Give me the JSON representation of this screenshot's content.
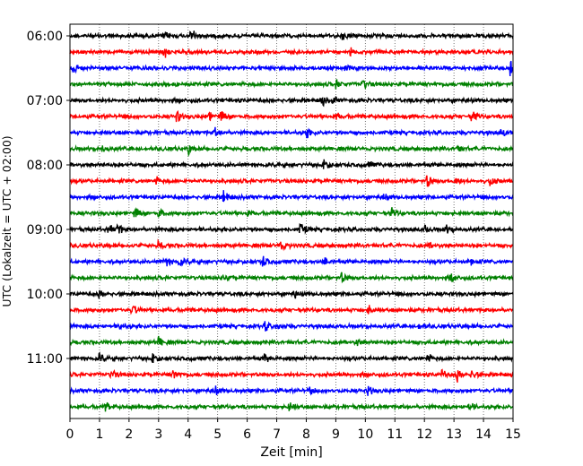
{
  "chart_data": {
    "type": "line",
    "title": "",
    "xlabel": "Zeit  [min]",
    "ylabel": "UTC (Lokalzeit = UTC + 02:00)",
    "xlim": [
      0,
      15
    ],
    "x_ticks": [
      "0",
      "1",
      "2",
      "3",
      "4",
      "5",
      "6",
      "7",
      "8",
      "9",
      "10",
      "11",
      "12",
      "13",
      "14",
      "15"
    ],
    "y_ticks": [
      "06:00",
      "07:00",
      "08:00",
      "09:00",
      "10:00",
      "11:00"
    ],
    "grid": "vertical dotted",
    "trace_colors": [
      "#000000",
      "#ff0000",
      "#0000ff",
      "#008000"
    ],
    "trace_interval_min": 15,
    "traces": [
      {
        "start": "06:00",
        "color": "#000000",
        "events": [
          {
            "t": 4.1,
            "a": 1.0
          },
          {
            "t": 9.2,
            "a": 0.5
          },
          {
            "t": 3.2,
            "a": 0.4
          }
        ]
      },
      {
        "start": "06:15",
        "color": "#ff0000",
        "events": [
          {
            "t": 3.2,
            "a": 0.7
          },
          {
            "t": 9.5,
            "a": 0.6
          }
        ]
      },
      {
        "start": "06:30",
        "color": "#0000ff",
        "events": [
          {
            "t": 0.1,
            "a": 0.8
          },
          {
            "t": 9.3,
            "a": 0.5
          },
          {
            "t": 14.9,
            "a": 0.8
          }
        ]
      },
      {
        "start": "06:45",
        "color": "#008000",
        "events": [
          {
            "t": 9.0,
            "a": 0.5
          },
          {
            "t": 9.9,
            "a": 0.6
          }
        ]
      },
      {
        "start": "07:00",
        "color": "#000000",
        "events": [
          {
            "t": 8.5,
            "a": 0.7
          },
          {
            "t": 8.9,
            "a": 0.5
          }
        ]
      },
      {
        "start": "07:15",
        "color": "#ff0000",
        "events": [
          {
            "t": 3.6,
            "a": 0.7
          },
          {
            "t": 4.7,
            "a": 0.5
          },
          {
            "t": 5.1,
            "a": 0.8
          },
          {
            "t": 9.0,
            "a": 0.5
          },
          {
            "t": 13.6,
            "a": 0.8
          }
        ]
      },
      {
        "start": "07:30",
        "color": "#0000ff",
        "events": [
          {
            "t": 4.9,
            "a": 0.6
          },
          {
            "t": 8.0,
            "a": 0.6
          },
          {
            "t": 14.6,
            "a": 0.5
          }
        ]
      },
      {
        "start": "07:45",
        "color": "#008000",
        "events": [
          {
            "t": 1.1,
            "a": 0.5
          },
          {
            "t": 4.0,
            "a": 0.6
          },
          {
            "t": 13.1,
            "a": 0.5
          }
        ]
      },
      {
        "start": "08:00",
        "color": "#000000",
        "events": [
          {
            "t": 8.6,
            "a": 0.6
          },
          {
            "t": 10.1,
            "a": 0.5
          }
        ]
      },
      {
        "start": "08:15",
        "color": "#ff0000",
        "events": [
          {
            "t": 2.9,
            "a": 0.5
          },
          {
            "t": 12.1,
            "a": 0.9
          },
          {
            "t": 13.0,
            "a": 0.6
          },
          {
            "t": 14.2,
            "a": 0.6
          }
        ]
      },
      {
        "start": "08:30",
        "color": "#0000ff",
        "events": [
          {
            "t": 5.2,
            "a": 0.7
          },
          {
            "t": 10.6,
            "a": 0.5
          }
        ]
      },
      {
        "start": "08:45",
        "color": "#008000",
        "events": [
          {
            "t": 2.2,
            "a": 0.8
          },
          {
            "t": 3.0,
            "a": 0.6
          },
          {
            "t": 6.0,
            "a": 0.5
          },
          {
            "t": 10.9,
            "a": 0.6
          }
        ]
      },
      {
        "start": "09:00",
        "color": "#000000",
        "events": [
          {
            "t": 1.3,
            "a": 0.6
          },
          {
            "t": 1.6,
            "a": 0.7
          },
          {
            "t": 7.8,
            "a": 0.8
          },
          {
            "t": 12.0,
            "a": 0.5
          },
          {
            "t": 12.7,
            "a": 0.6
          }
        ]
      },
      {
        "start": "09:15",
        "color": "#ff0000",
        "events": [
          {
            "t": 3.0,
            "a": 0.5
          },
          {
            "t": 7.1,
            "a": 0.9
          },
          {
            "t": 12.1,
            "a": 0.5
          }
        ]
      },
      {
        "start": "09:30",
        "color": "#0000ff",
        "events": [
          {
            "t": 3.2,
            "a": 0.6
          },
          {
            "t": 3.7,
            "a": 0.6
          },
          {
            "t": 6.5,
            "a": 0.8
          },
          {
            "t": 8.6,
            "a": 0.6
          },
          {
            "t": 13.6,
            "a": 0.5
          }
        ]
      },
      {
        "start": "09:45",
        "color": "#008000",
        "events": [
          {
            "t": 5.2,
            "a": 0.5
          },
          {
            "t": 9.2,
            "a": 0.6
          },
          {
            "t": 12.9,
            "a": 0.5
          }
        ]
      },
      {
        "start": "10:00",
        "color": "#000000",
        "events": [
          {
            "t": 1.0,
            "a": 0.5
          },
          {
            "t": 7.6,
            "a": 0.5
          }
        ]
      },
      {
        "start": "10:15",
        "color": "#ff0000",
        "events": [
          {
            "t": 2.1,
            "a": 0.7
          },
          {
            "t": 10.1,
            "a": 0.7
          }
        ]
      },
      {
        "start": "10:30",
        "color": "#0000ff",
        "events": [
          {
            "t": 1.7,
            "a": 0.5
          },
          {
            "t": 6.6,
            "a": 0.6
          },
          {
            "t": 7.0,
            "a": 0.5
          },
          {
            "t": 11.8,
            "a": 0.5
          }
        ]
      },
      {
        "start": "10:45",
        "color": "#008000",
        "events": [
          {
            "t": 3.0,
            "a": 0.6
          },
          {
            "t": 9.7,
            "a": 0.5
          }
        ]
      },
      {
        "start": "11:00",
        "color": "#000000",
        "events": [
          {
            "t": 1.0,
            "a": 0.6
          },
          {
            "t": 2.8,
            "a": 0.5
          },
          {
            "t": 6.6,
            "a": 0.6
          },
          {
            "t": 12.1,
            "a": 0.6
          }
        ]
      },
      {
        "start": "11:15",
        "color": "#ff0000",
        "events": [
          {
            "t": 1.4,
            "a": 0.6
          },
          {
            "t": 3.5,
            "a": 0.7
          },
          {
            "t": 12.6,
            "a": 0.6
          },
          {
            "t": 13.1,
            "a": 0.8
          },
          {
            "t": 13.6,
            "a": 0.6
          }
        ]
      },
      {
        "start": "11:30",
        "color": "#0000ff",
        "events": [
          {
            "t": 4.9,
            "a": 0.6
          },
          {
            "t": 8.1,
            "a": 0.6
          },
          {
            "t": 10.1,
            "a": 0.6
          }
        ]
      },
      {
        "start": "11:45",
        "color": "#008000",
        "events": [
          {
            "t": 1.2,
            "a": 0.5
          },
          {
            "t": 7.4,
            "a": 0.7
          },
          {
            "t": 13.5,
            "a": 0.6
          }
        ]
      }
    ]
  }
}
